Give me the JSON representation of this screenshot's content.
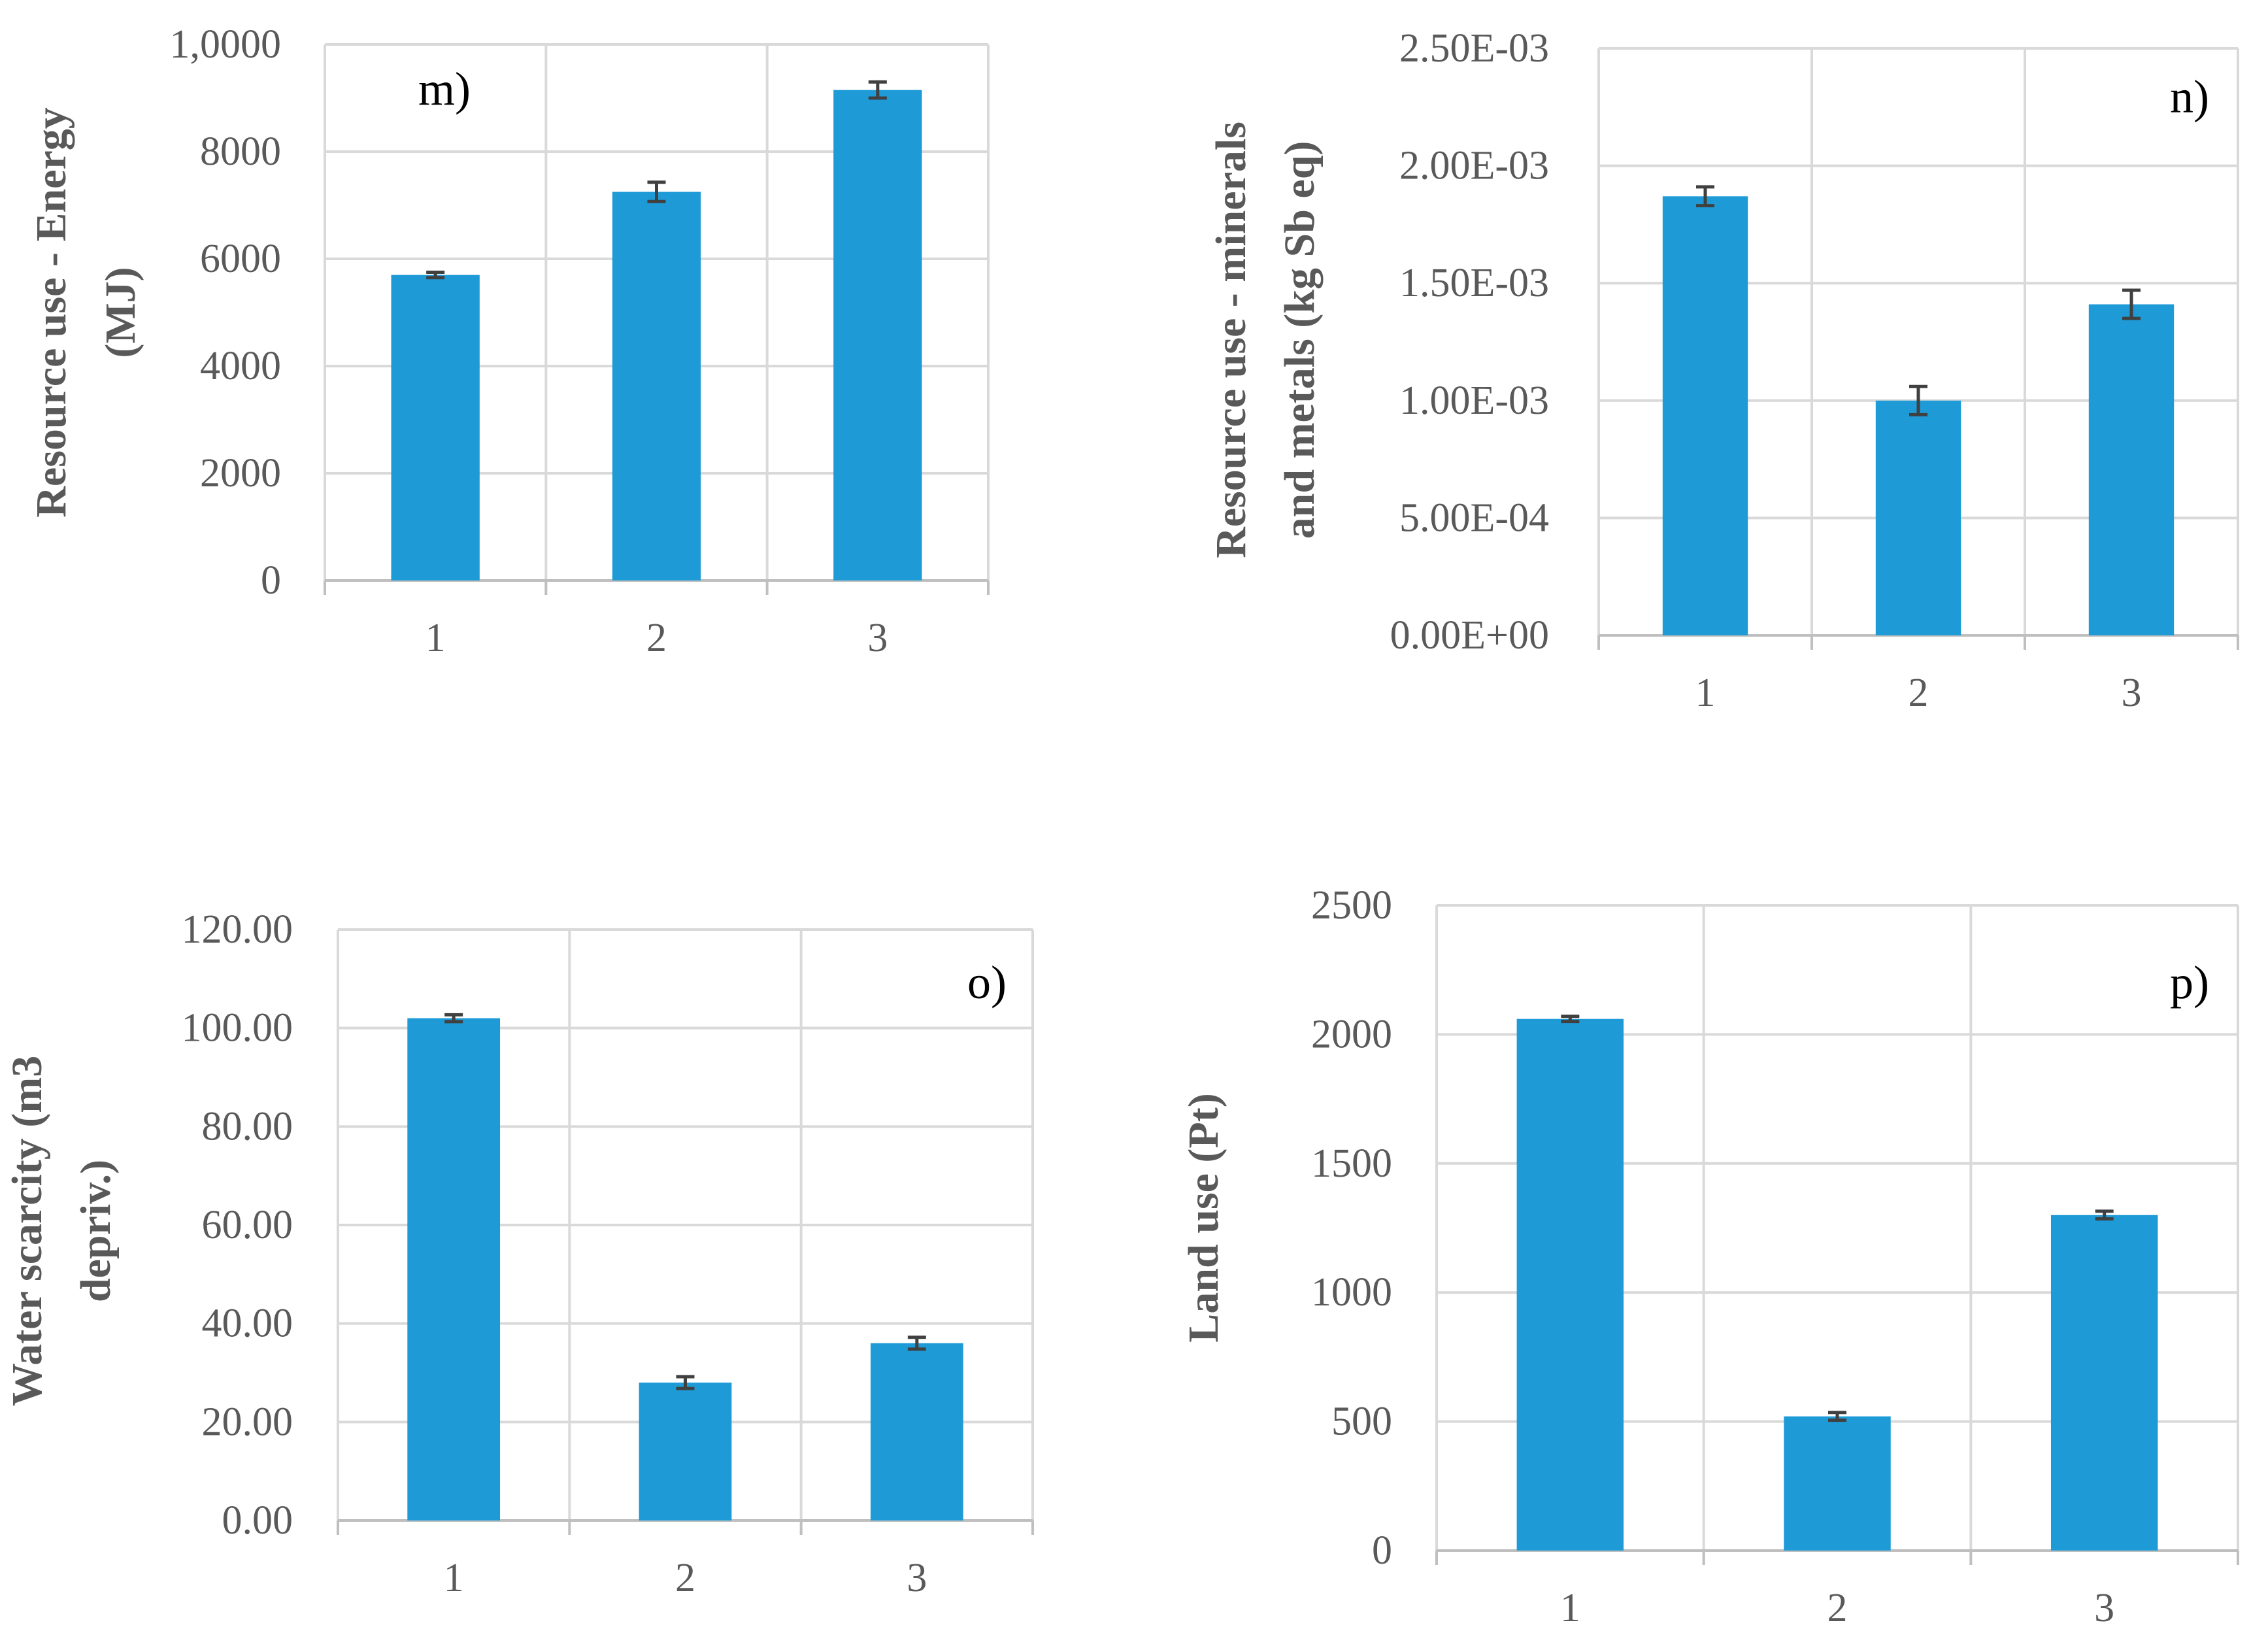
{
  "colors": {
    "bar": "#1e9bd7",
    "grid": "#d9d9d9",
    "error_bar": "#404040",
    "text": "#595959"
  },
  "chart_data": [
    {
      "type": "bar",
      "panel": "m)",
      "title": "",
      "xlabel": "",
      "ylabel_lines": [
        "Resource use - Energy",
        "(MJ)"
      ],
      "categories": [
        "1",
        "2",
        "3"
      ],
      "values": [
        5700,
        7250,
        9150
      ],
      "errors": [
        50,
        180,
        150
      ],
      "ylim": [
        0,
        10000
      ],
      "yticks": [
        "0",
        "2000",
        "4000",
        "6000",
        "8000",
        "1,0000"
      ],
      "label_position": "top-left"
    },
    {
      "type": "bar",
      "panel": "n)",
      "title": "",
      "xlabel": "",
      "ylabel_lines": [
        "Resource use - minerals",
        "and metals (kg Sb eq)"
      ],
      "categories": [
        "1",
        "2",
        "3"
      ],
      "values": [
        0.00187,
        0.001,
        0.00141
      ],
      "errors": [
        4e-05,
        6e-05,
        6e-05
      ],
      "ylim": [
        0,
        0.0025
      ],
      "yticks": [
        "0.00E+00",
        "5.00E-04",
        "1.00E-03",
        "1.50E-03",
        "2.00E-03",
        "2.50E-03"
      ],
      "label_position": "top-right"
    },
    {
      "type": "bar",
      "panel": "o)",
      "title": "",
      "xlabel": "",
      "ylabel_lines": [
        "Water scarcity (m3",
        "depriv.)"
      ],
      "categories": [
        "1",
        "2",
        "3"
      ],
      "values": [
        102.0,
        28.0,
        36.0
      ],
      "errors": [
        0.7,
        1.2,
        1.2
      ],
      "ylim": [
        0,
        120
      ],
      "yticks": [
        "0.00",
        "20.00",
        "40.00",
        "60.00",
        "80.00",
        "100.00",
        "120.00"
      ],
      "label_position": "top-right"
    },
    {
      "type": "bar",
      "panel": "p)",
      "title": "",
      "xlabel": "",
      "ylabel_lines": [
        "Land use (Pt)"
      ],
      "categories": [
        "1",
        "2",
        "3"
      ],
      "values": [
        2060,
        520,
        1300
      ],
      "errors": [
        10,
        15,
        15
      ],
      "ylim": [
        0,
        2500
      ],
      "yticks": [
        "0",
        "500",
        "1000",
        "1500",
        "2000",
        "2500"
      ],
      "label_position": "top-right"
    }
  ]
}
